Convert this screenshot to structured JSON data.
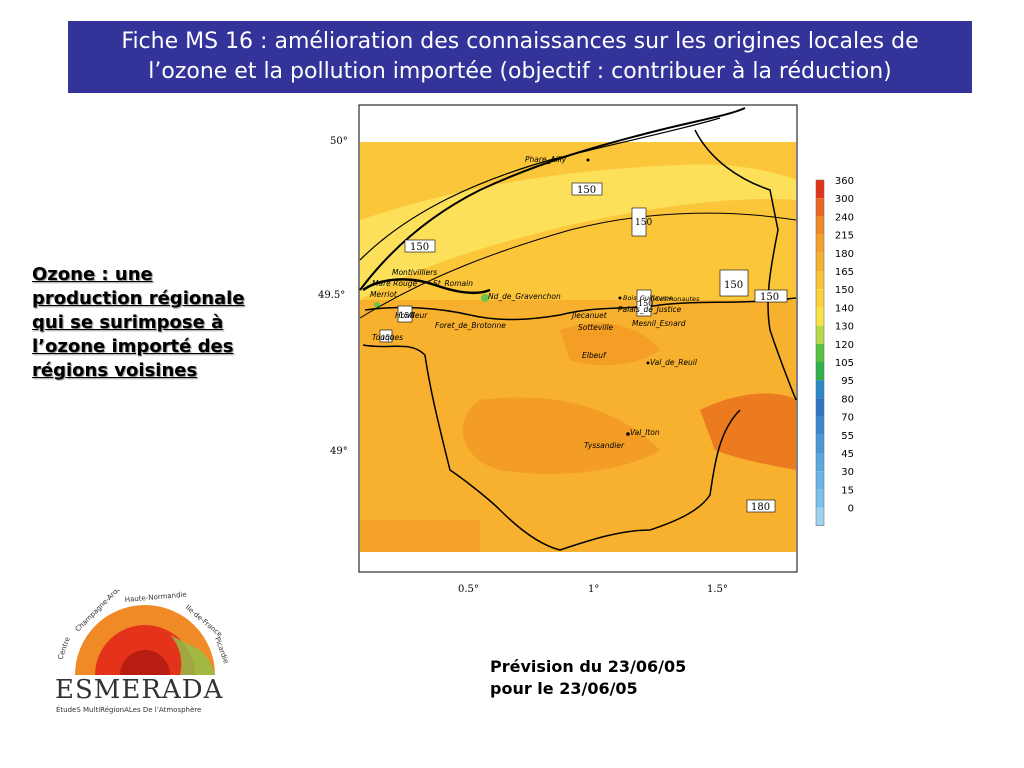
{
  "title": {
    "line1": "Fiche MS 16 : amélioration des connaissances sur les origines locales de",
    "line2": "l’ozone et la pollution importée (objectif : contribuer à la réduction)"
  },
  "side_text": {
    "line1": "Ozone : une",
    "line2": "production régionale",
    "line3": "qui se surimpose à",
    "line4": "l’ozone importé des",
    "line5": "régions voisines"
  },
  "forecast": {
    "line1": "Prévision du 23/06/05",
    "line2": "pour le 23/06/05"
  },
  "map": {
    "lat_labels": [
      "50°",
      "49.5°",
      "49°"
    ],
    "lon_labels": [
      "0.5°",
      "1°",
      "1.5°"
    ],
    "contour_labels": [
      "150",
      "150",
      "150",
      "150",
      "150",
      "150",
      "150",
      "150",
      "180"
    ],
    "places": [
      "Phare_Ailly",
      "Montivilliers",
      "Mare Rouge",
      "St_Romain",
      "Merriot",
      "Honfleur",
      "Nd_de_Gravenchon",
      "Foret_de_Brotonne",
      "Touques",
      "Bois_Guillaume",
      "GCosmonautes",
      "Jlecanuet",
      "Palais_de_Justice",
      "Sotteville",
      "Mesnil_Esnard",
      "Elbeuf",
      "Val_de_Reuil",
      "Val_Iton",
      "Tyssandier"
    ],
    "colors": {
      "land_main": "#f7b12e",
      "land_dark": "#f29a24",
      "land_north": "#fbc63a",
      "land_light": "#fde05a",
      "hot_east": "#ec7a1f",
      "green_spot": "#66c64a"
    }
  },
  "legend": {
    "values": [
      "360",
      "300",
      "240",
      "215",
      "180",
      "165",
      "150",
      "140",
      "130",
      "120",
      "105",
      "95",
      "80",
      "70",
      "55",
      "45",
      "30",
      "15",
      "0"
    ],
    "colors": [
      "#e5331b",
      "#ec6622",
      "#f08a26",
      "#f3a12b",
      "#f6b12f",
      "#f9c435",
      "#fbd13b",
      "#f9e246",
      "#b8d84a",
      "#5ac242",
      "#2fb24a",
      "#2a88c6",
      "#2f74c2",
      "#3b86cf",
      "#4998d8",
      "#5aa8e0",
      "#6ab4e6",
      "#7ec0ea",
      "#9fd2f1"
    ]
  },
  "logo": {
    "name": "ESMERADA",
    "tagline": "ÉtudeS MultiRégionALes De l’Atmosphère",
    "regions": [
      "Centre",
      "Champagne-Ardenne",
      "Haute-Normandie",
      "Ile-de-France",
      "Picardie"
    ]
  }
}
